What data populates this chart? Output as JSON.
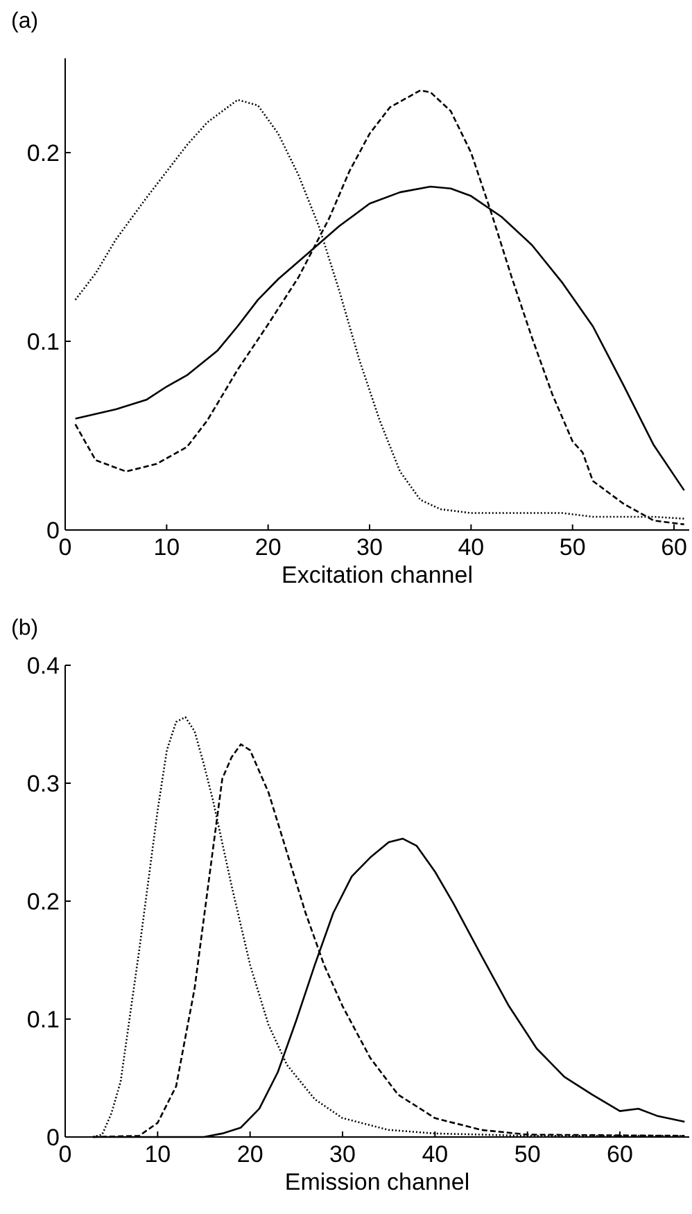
{
  "chart_data": [
    {
      "type": "line",
      "title": "(a)",
      "xlabel": "Excitation channel",
      "xlim": [
        0,
        61.5
      ],
      "xticks": [
        0,
        10,
        20,
        30,
        40,
        50,
        60
      ],
      "ylim": [
        0,
        0.25
      ],
      "yticks": [
        0,
        0.1,
        0.2
      ],
      "series": [
        {
          "color": "#000000",
          "line_style": "solid",
          "x": [
            1,
            5,
            8,
            10,
            12,
            15,
            17,
            19,
            21,
            24,
            27,
            30,
            33,
            36,
            38,
            40,
            43,
            46,
            49,
            52,
            55,
            58,
            61
          ],
          "values": [
            0.059,
            0.064,
            0.069,
            0.076,
            0.082,
            0.095,
            0.108,
            0.122,
            0.133,
            0.147,
            0.161,
            0.173,
            0.179,
            0.182,
            0.181,
            0.177,
            0.166,
            0.151,
            0.131,
            0.108,
            0.077,
            0.045,
            0.021
          ]
        },
        {
          "color": "#000000",
          "line_style": "dashed",
          "x": [
            1,
            3,
            6,
            9,
            12,
            14,
            17,
            20,
            23,
            26,
            28,
            30,
            32,
            35,
            36,
            38,
            40,
            42,
            44,
            46,
            48,
            50,
            51,
            52,
            55,
            58,
            61
          ],
          "values": [
            0.056,
            0.037,
            0.031,
            0.035,
            0.044,
            0.058,
            0.085,
            0.109,
            0.134,
            0.165,
            0.19,
            0.21,
            0.224,
            0.233,
            0.232,
            0.222,
            0.2,
            0.168,
            0.134,
            0.102,
            0.072,
            0.047,
            0.041,
            0.026,
            0.014,
            0.005,
            0.003
          ]
        },
        {
          "color": "#000000",
          "line_style": "dotted",
          "x": [
            1,
            3,
            5,
            8,
            10,
            12,
            14,
            17,
            19,
            21,
            23,
            25,
            27,
            29,
            31,
            33,
            35,
            37,
            40,
            45,
            49,
            52,
            58,
            61
          ],
          "values": [
            0.122,
            0.136,
            0.154,
            0.176,
            0.19,
            0.204,
            0.216,
            0.228,
            0.225,
            0.21,
            0.188,
            0.161,
            0.127,
            0.09,
            0.058,
            0.031,
            0.016,
            0.011,
            0.009,
            0.009,
            0.009,
            0.007,
            0.007,
            0.006
          ]
        }
      ]
    },
    {
      "type": "line",
      "title": "(b)",
      "xlabel": "Emission channel",
      "xlim": [
        0,
        67.5
      ],
      "xticks": [
        0,
        10,
        20,
        30,
        40,
        50,
        60
      ],
      "ylim": [
        0,
        0.4
      ],
      "yticks": [
        0,
        0.1,
        0.2,
        0.3,
        0.4
      ],
      "series": [
        {
          "color": "#000000",
          "line_style": "solid",
          "x": [
            3,
            15,
            17,
            19,
            21,
            23,
            25,
            27,
            29,
            31,
            33,
            35,
            36.5,
            38,
            40,
            42,
            45,
            48,
            51,
            54,
            57,
            60,
            62,
            64,
            67
          ],
          "values": [
            0,
            0,
            0.003,
            0.008,
            0.024,
            0.055,
            0.099,
            0.146,
            0.19,
            0.221,
            0.237,
            0.25,
            0.253,
            0.247,
            0.225,
            0.198,
            0.154,
            0.111,
            0.075,
            0.051,
            0.036,
            0.022,
            0.024,
            0.018,
            0.013
          ]
        },
        {
          "color": "#000000",
          "line_style": "dashed",
          "x": [
            3,
            8,
            10,
            12,
            14,
            16,
            17,
            18,
            19,
            20,
            22,
            24,
            26,
            28,
            30,
            33,
            36,
            40,
            45,
            50,
            67
          ],
          "values": [
            0,
            0.001,
            0.012,
            0.043,
            0.126,
            0.245,
            0.304,
            0.322,
            0.333,
            0.328,
            0.292,
            0.241,
            0.19,
            0.146,
            0.111,
            0.067,
            0.036,
            0.016,
            0.006,
            0.002,
            0.001
          ]
        },
        {
          "color": "#000000",
          "line_style": "dotted",
          "x": [
            3,
            4,
            5,
            6,
            8,
            10,
            11,
            12,
            13,
            14,
            15,
            16,
            18,
            20,
            22,
            24,
            27,
            30,
            35,
            40,
            50,
            67
          ],
          "values": [
            0,
            0.002,
            0.02,
            0.047,
            0.158,
            0.277,
            0.328,
            0.352,
            0.356,
            0.344,
            0.316,
            0.285,
            0.213,
            0.146,
            0.095,
            0.061,
            0.032,
            0.016,
            0.006,
            0.003,
            0.001,
            0.001
          ]
        }
      ]
    }
  ]
}
